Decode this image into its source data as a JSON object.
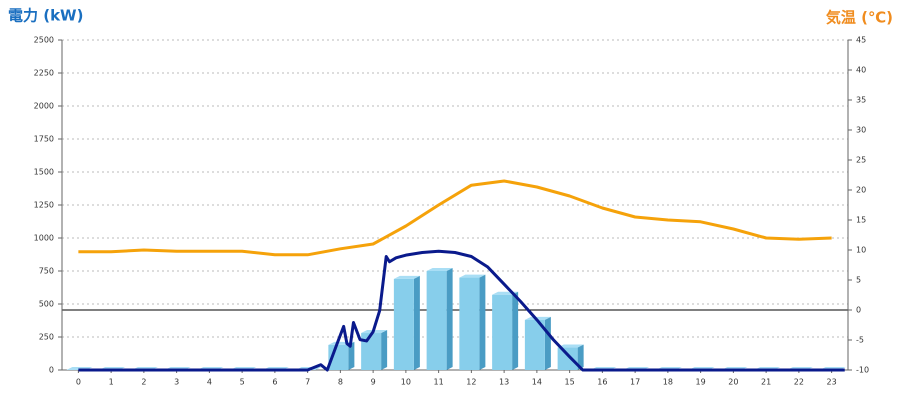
{
  "chart_data": {
    "type": "bar",
    "title_left": "電力 (kW)",
    "title_right": "気温 (℃)",
    "title_left_color": "#1a6fc0",
    "title_right_color": "#f08c1e",
    "categories": [
      "0",
      "1",
      "2",
      "3",
      "4",
      "5",
      "6",
      "7",
      "8",
      "9",
      "10",
      "11",
      "12",
      "13",
      "14",
      "15",
      "16",
      "17",
      "18",
      "19",
      "20",
      "21",
      "22",
      "23"
    ],
    "ylim": [
      0,
      2500
    ],
    "yticks": [
      0,
      250,
      500,
      750,
      1000,
      1250,
      1500,
      1750,
      2000,
      2250,
      2500
    ],
    "y2lim": [
      -10,
      45
    ],
    "y2ticks": [
      -10,
      -5,
      0,
      5,
      10,
      15,
      20,
      25,
      30,
      35,
      40,
      45
    ],
    "grid": true,
    "series": [
      {
        "type": "bar",
        "color": "#87ceeb",
        "values": [
          0,
          0,
          0,
          0,
          0,
          0,
          0,
          0,
          190,
          280,
          690,
          750,
          700,
          570,
          380,
          170,
          0,
          0,
          0,
          0,
          0,
          0,
          0,
          0
        ]
      },
      {
        "type": "line",
        "color": "#0a1a8c",
        "x": [
          0,
          6.5,
          7,
          7.4,
          7.6,
          7.9,
          8.1,
          8.2,
          8.3,
          8.4,
          8.6,
          8.8,
          9,
          9.2,
          9.4,
          9.5,
          9.7,
          10,
          10.5,
          11,
          11.5,
          12,
          12.5,
          13,
          13.5,
          14,
          14.5,
          15,
          15.4,
          16,
          23.4
        ],
        "values": [
          0,
          0,
          0,
          40,
          0,
          200,
          330,
          200,
          180,
          360,
          230,
          220,
          290,
          450,
          860,
          820,
          850,
          870,
          890,
          900,
          890,
          860,
          780,
          650,
          520,
          380,
          230,
          100,
          0,
          0,
          0
        ]
      },
      {
        "type": "line",
        "axis": "y2",
        "color": "#f5a20a",
        "values": [
          9.7,
          9.7,
          10,
          9.8,
          9.8,
          9.8,
          9.2,
          9.2,
          10.2,
          11,
          14,
          17.5,
          20.8,
          21.5,
          20.5,
          19,
          17,
          15.5,
          15,
          14.7,
          13.5,
          12,
          11.8,
          12
        ]
      }
    ]
  }
}
